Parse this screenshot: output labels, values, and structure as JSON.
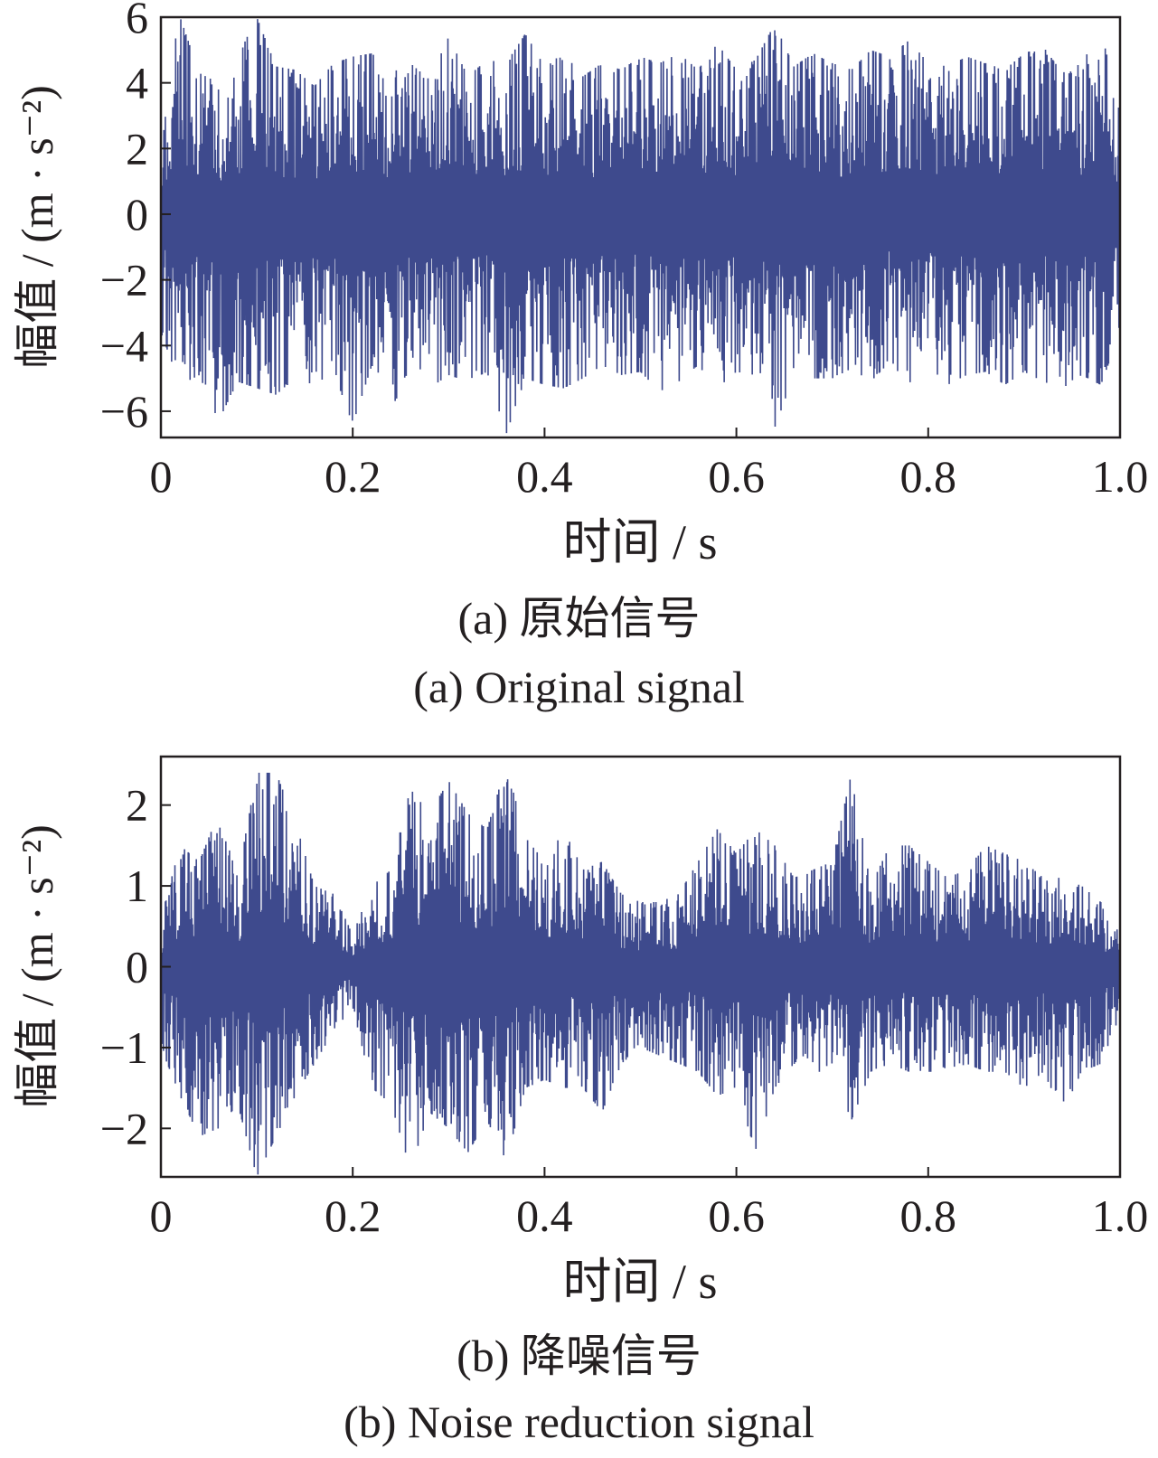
{
  "chart_data": [
    {
      "type": "line",
      "panel": "a",
      "xlabel": "时间 / s",
      "ylabel": "幅值 / (m · s⁻²)",
      "xlim": [
        0,
        1.0
      ],
      "ylim": [
        -6.8,
        6.0
      ],
      "xticks": [
        0,
        0.2,
        0.4,
        0.6,
        0.8,
        1.0
      ],
      "xtick_labels": [
        "0",
        "0.2",
        "0.4",
        "0.6",
        "0.8",
        "1.0"
      ],
      "yticks": [
        6,
        4,
        2,
        0,
        -2,
        -4,
        -6
      ],
      "ytick_labels": [
        "6",
        "4",
        "2",
        "0",
        "−2",
        "−4",
        "−6"
      ],
      "caption_cn": "(a)  原始信号",
      "caption_en": "(a)  Original signal",
      "line_color": "#3e4a8d",
      "series": [
        {
          "x": [
            0,
            0.02,
            0.04,
            0.06,
            0.08,
            0.1,
            0.12,
            0.14,
            0.16,
            0.18,
            0.2,
            0.22,
            0.24,
            0.26,
            0.28,
            0.3,
            0.32,
            0.34,
            0.36,
            0.38,
            0.4,
            0.42,
            0.44,
            0.46,
            0.48,
            0.5,
            0.52,
            0.54,
            0.56,
            0.58,
            0.6,
            0.62,
            0.64,
            0.66,
            0.68,
            0.7,
            0.72,
            0.74,
            0.76,
            0.78,
            0.8,
            0.82,
            0.84,
            0.86,
            0.88,
            0.9,
            0.92,
            0.94,
            0.96,
            0.98,
            1.0
          ],
          "y_upper": [
            3.2,
            6.0,
            4.3,
            4.0,
            4.8,
            6.0,
            4.5,
            4.4,
            3.9,
            4.6,
            4.8,
            4.9,
            4.3,
            4.6,
            4.1,
            5.4,
            4.2,
            4.7,
            4.6,
            5.5,
            4.5,
            4.9,
            4.2,
            4.6,
            4.4,
            4.8,
            4.6,
            4.9,
            4.4,
            5.2,
            4.4,
            4.7,
            5.8,
            4.5,
            4.9,
            4.6,
            4.4,
            5.0,
            4.8,
            5.3,
            4.6,
            4.5,
            4.8,
            4.6,
            4.4,
            4.9,
            5.1,
            4.3,
            4.6,
            5.6,
            3.2
          ],
          "y_lower": [
            -3.6,
            -5.2,
            -4.9,
            -6.3,
            -5.1,
            -5.3,
            -5.5,
            -5.0,
            -5.2,
            -4.8,
            -6.4,
            -4.6,
            -5.9,
            -4.9,
            -5.3,
            -4.9,
            -5.1,
            -4.8,
            -6.7,
            -5.0,
            -5.2,
            -5.3,
            -5.0,
            -4.6,
            -4.9,
            -4.8,
            -5.4,
            -5.1,
            -4.6,
            -5.3,
            -4.8,
            -4.9,
            -6.5,
            -4.9,
            -5.0,
            -5.0,
            -4.7,
            -5.1,
            -4.5,
            -5.2,
            -4.6,
            -5.2,
            -4.9,
            -4.8,
            -5.2,
            -4.8,
            -5.1,
            -5.3,
            -4.9,
            -5.2,
            -3.6
          ]
        }
      ]
    },
    {
      "type": "line",
      "panel": "b",
      "xlabel": "时间 / s",
      "ylabel": "幅值 / (m · s⁻²)",
      "xlim": [
        0,
        1.0
      ],
      "ylim": [
        -2.6,
        2.6
      ],
      "xticks": [
        0,
        0.2,
        0.4,
        0.6,
        0.8,
        1.0
      ],
      "xtick_labels": [
        "0",
        "0.2",
        "0.4",
        "0.6",
        "0.8",
        "1.0"
      ],
      "yticks": [
        2,
        1,
        0,
        -1,
        -2
      ],
      "ytick_labels": [
        "2",
        "1",
        "0",
        "−1",
        "−2"
      ],
      "caption_cn": "(b)  降噪信号",
      "caption_en": "(b)  Noise reduction signal",
      "line_color": "#3e4a8d",
      "series": [
        {
          "x": [
            0,
            0.02,
            0.04,
            0.06,
            0.08,
            0.1,
            0.12,
            0.14,
            0.16,
            0.18,
            0.2,
            0.22,
            0.24,
            0.26,
            0.28,
            0.3,
            0.32,
            0.34,
            0.36,
            0.38,
            0.4,
            0.42,
            0.44,
            0.46,
            0.48,
            0.5,
            0.52,
            0.54,
            0.56,
            0.58,
            0.6,
            0.62,
            0.64,
            0.66,
            0.68,
            0.7,
            0.72,
            0.74,
            0.76,
            0.78,
            0.8,
            0.82,
            0.84,
            0.86,
            0.88,
            0.9,
            0.92,
            0.94,
            0.96,
            0.98,
            1.0
          ],
          "y_upper": [
            0.6,
            1.5,
            1.3,
            1.9,
            1.1,
            2.4,
            2.4,
            1.8,
            1.0,
            0.9,
            0.4,
            1.0,
            1.2,
            2.2,
            1.9,
            2.3,
            1.9,
            1.7,
            2.5,
            1.6,
            1.3,
            1.7,
            1.2,
            1.3,
            0.9,
            0.8,
            0.8,
            0.9,
            1.3,
            1.7,
            1.4,
            1.7,
            1.5,
            1.1,
            1.2,
            1.3,
            2.4,
            1.0,
            1.5,
            1.5,
            1.3,
            1.1,
            1.2,
            1.5,
            1.4,
            1.3,
            1.1,
            1.1,
            1.0,
            0.8,
            0.4
          ],
          "y_lower": [
            -1.0,
            -1.6,
            -2.1,
            -2.0,
            -1.7,
            -2.6,
            -2.1,
            -1.6,
            -1.2,
            -0.8,
            -0.5,
            -1.5,
            -1.7,
            -2.5,
            -1.8,
            -2.0,
            -2.3,
            -1.9,
            -2.4,
            -1.5,
            -1.4,
            -1.5,
            -1.5,
            -1.8,
            -1.2,
            -1.0,
            -1.1,
            -1.2,
            -1.3,
            -1.6,
            -1.5,
            -2.3,
            -1.5,
            -1.2,
            -1.3,
            -1.3,
            -1.9,
            -1.3,
            -1.2,
            -1.3,
            -1.3,
            -1.3,
            -1.2,
            -1.3,
            -1.3,
            -1.5,
            -1.3,
            -1.8,
            -1.3,
            -1.2,
            -0.6
          ]
        }
      ]
    }
  ]
}
